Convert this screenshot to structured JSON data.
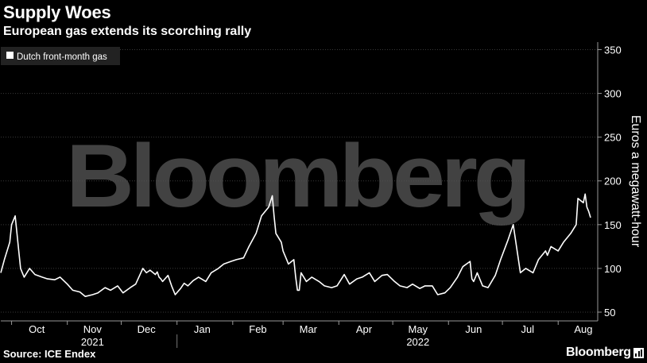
{
  "header": {
    "title": "Supply Woes",
    "subtitle": "European gas extends its scorching rally"
  },
  "footer": {
    "source": "Source: ICE Endex",
    "brand": "Bloomberg"
  },
  "watermark": "Bloomberg",
  "chart_data": {
    "type": "line",
    "title": "Supply Woes",
    "subtitle": "European gas extends its scorching rally",
    "ylabel": "Euros a megawatt-hour",
    "ylim": [
      40,
      355
    ],
    "yticks": [
      50,
      100,
      150,
      200,
      250,
      300,
      350
    ],
    "xlim": [
      "2021-09-25",
      "2022-08-23"
    ],
    "month_ticks": [
      {
        "label": "Oct",
        "date": "2021-10-15"
      },
      {
        "label": "Nov",
        "date": "2021-11-15"
      },
      {
        "label": "Dec",
        "date": "2021-12-15"
      },
      {
        "label": "Jan",
        "date": "2022-01-15"
      },
      {
        "label": "Feb",
        "date": "2022-02-15"
      },
      {
        "label": "Mar",
        "date": "2022-03-15"
      },
      {
        "label": "Apr",
        "date": "2022-04-15"
      },
      {
        "label": "May",
        "date": "2022-05-15"
      },
      {
        "label": "Jun",
        "date": "2022-06-15"
      },
      {
        "label": "Jul",
        "date": "2022-07-15"
      },
      {
        "label": "Aug",
        "date": "2022-08-15"
      }
    ],
    "year_labels": [
      {
        "label": "2021",
        "date": "2021-11-15"
      },
      {
        "label": "2022",
        "date": "2022-05-15"
      }
    ],
    "year_separator": "2022-01-01",
    "grid": true,
    "legend": "top-left",
    "line_color": "#ffffff",
    "series": [
      {
        "name": "Dutch front-month gas",
        "x": [
          "2021-09-25",
          "2021-09-27",
          "2021-09-30",
          "2021-10-01",
          "2021-10-03",
          "2021-10-05",
          "2021-10-06",
          "2021-10-07",
          "2021-10-08",
          "2021-10-11",
          "2021-10-14",
          "2021-10-18",
          "2021-10-21",
          "2021-10-25",
          "2021-10-28",
          "2021-11-01",
          "2021-11-04",
          "2021-11-08",
          "2021-11-11",
          "2021-11-15",
          "2021-11-18",
          "2021-11-22",
          "2021-11-25",
          "2021-11-29",
          "2021-12-02",
          "2021-12-06",
          "2021-12-09",
          "2021-12-13",
          "2021-12-15",
          "2021-12-17",
          "2021-12-20",
          "2021-12-21",
          "2021-12-22",
          "2021-12-23",
          "2021-12-24",
          "2021-12-27",
          "2021-12-29",
          "2021-12-31",
          "2022-01-03",
          "2022-01-05",
          "2022-01-07",
          "2022-01-10",
          "2022-01-13",
          "2022-01-17",
          "2022-01-20",
          "2022-01-24",
          "2022-01-27",
          "2022-01-31",
          "2022-02-03",
          "2022-02-07",
          "2022-02-10",
          "2022-02-14",
          "2022-02-17",
          "2022-02-21",
          "2022-02-23",
          "2022-02-24",
          "2022-02-25",
          "2022-02-28",
          "2022-03-01",
          "2022-03-02",
          "2022-03-03",
          "2022-03-04",
          "2022-03-07",
          "2022-03-08",
          "2022-03-09",
          "2022-03-10",
          "2022-03-11",
          "2022-03-14",
          "2022-03-17",
          "2022-03-21",
          "2022-03-24",
          "2022-03-28",
          "2022-03-31",
          "2022-04-04",
          "2022-04-07",
          "2022-04-11",
          "2022-04-14",
          "2022-04-18",
          "2022-04-21",
          "2022-04-25",
          "2022-04-28",
          "2022-05-02",
          "2022-05-05",
          "2022-05-09",
          "2022-05-12",
          "2022-05-16",
          "2022-05-19",
          "2022-05-23",
          "2022-05-26",
          "2022-05-30",
          "2022-06-02",
          "2022-06-06",
          "2022-06-09",
          "2022-06-13",
          "2022-06-14",
          "2022-06-15",
          "2022-06-16",
          "2022-06-17",
          "2022-06-20",
          "2022-06-23",
          "2022-06-27",
          "2022-06-30",
          "2022-07-04",
          "2022-07-07",
          "2022-07-11",
          "2022-07-14",
          "2022-07-18",
          "2022-07-21",
          "2022-07-25",
          "2022-07-26",
          "2022-07-28",
          "2022-08-01",
          "2022-08-04",
          "2022-08-08",
          "2022-08-11",
          "2022-08-12",
          "2022-08-15",
          "2022-08-16",
          "2022-08-17",
          "2022-08-18",
          "2022-08-19"
        ],
        "values": [
          95,
          110,
          130,
          150,
          160,
          120,
          100,
          95,
          90,
          100,
          93,
          90,
          88,
          87,
          90,
          82,
          75,
          73,
          68,
          70,
          72,
          78,
          75,
          80,
          72,
          78,
          82,
          100,
          95,
          98,
          93,
          96,
          90,
          88,
          85,
          92,
          80,
          70,
          77,
          83,
          80,
          86,
          90,
          85,
          95,
          100,
          105,
          108,
          110,
          112,
          125,
          140,
          160,
          170,
          183,
          160,
          140,
          130,
          120,
          115,
          110,
          105,
          110,
          90,
          75,
          75,
          95,
          85,
          90,
          85,
          80,
          78,
          80,
          93,
          82,
          88,
          90,
          95,
          85,
          92,
          93,
          85,
          80,
          78,
          82,
          77,
          80,
          80,
          70,
          72,
          78,
          90,
          102,
          108,
          88,
          85,
          90,
          95,
          80,
          78,
          92,
          110,
          132,
          150,
          95,
          100,
          95,
          110,
          120,
          115,
          125,
          120,
          130,
          140,
          150,
          180,
          175,
          185,
          170,
          165,
          158
        ]
      }
    ]
  }
}
